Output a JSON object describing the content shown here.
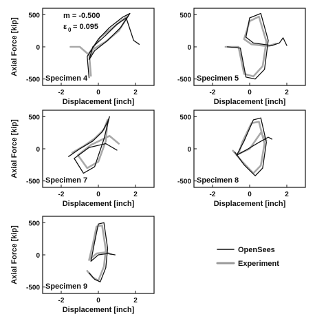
{
  "figure": {
    "legend": {
      "position": "bottom-right",
      "entries": [
        {
          "label": "OpenSees",
          "color": "#111111"
        },
        {
          "label": "Experiment",
          "color": "#9a9a9a"
        }
      ]
    },
    "annotation": {
      "m": "m = -0.500",
      "eps_symbol": "ε",
      "eps_sub": "0",
      "eps_value": "= 0.095"
    }
  },
  "chart_data": [
    {
      "type": "line",
      "label": "Specimen 4",
      "xlabel": "Displacement [inch]",
      "ylabel": "Axial Force [kip]",
      "xlim": [
        -3,
        3
      ],
      "ylim": [
        -600,
        600
      ],
      "xticks": [
        -2,
        0,
        2
      ],
      "yticks": [
        -500,
        0,
        500
      ],
      "series": [
        {
          "name": "OpenSees",
          "color": "#111111",
          "x": [
            -0.5,
            -0.6,
            0.0,
            0.6,
            1.3,
            1.7,
            1.2,
            0.5,
            -0.2,
            -0.5,
            -0.3,
            0.4,
            1.0,
            1.5,
            1.9,
            2.2
          ],
          "y": [
            -480,
            -150,
            120,
            300,
            460,
            520,
            300,
            100,
            -60,
            -200,
            0,
            180,
            350,
            450,
            100,
            40
          ]
        },
        {
          "name": "Experiment",
          "color": "#9a9a9a",
          "x": [
            -0.4,
            -0.5,
            0.1,
            0.7,
            1.2,
            1.6,
            1.1,
            0.4,
            -0.3,
            -0.4,
            -1.0,
            -1.5
          ],
          "y": [
            -450,
            -100,
            150,
            280,
            400,
            480,
            250,
            80,
            -40,
            -150,
            0,
            0
          ]
        }
      ]
    },
    {
      "type": "line",
      "label": "Specimen 5",
      "xlabel": "Displacement [inch]",
      "ylabel": "Axial Force [kip]",
      "xlim": [
        -3,
        3
      ],
      "ylim": [
        -600,
        600
      ],
      "xticks": [
        -2,
        0,
        2
      ],
      "yticks": [
        -500,
        0,
        500
      ],
      "series": [
        {
          "name": "OpenSees",
          "color": "#111111",
          "x": [
            -1.2,
            -0.5,
            -0.2,
            0.3,
            0.8,
            1.0,
            0.6,
            0.0,
            -0.2,
            0.2,
            1.2,
            1.6,
            1.8,
            2.0
          ],
          "y": [
            0,
            -20,
            -470,
            -500,
            -350,
            100,
            520,
            450,
            150,
            60,
            20,
            60,
            140,
            20
          ]
        },
        {
          "name": "Experiment",
          "color": "#9a9a9a",
          "x": [
            -1.3,
            -0.6,
            -0.3,
            0.2,
            0.7,
            0.9,
            0.5,
            0.0,
            -0.3,
            0.1,
            1.0,
            1.4
          ],
          "y": [
            0,
            0,
            -420,
            -460,
            -300,
            80,
            470,
            400,
            120,
            40,
            10,
            50
          ]
        }
      ]
    },
    {
      "type": "line",
      "label": "Specimen 7",
      "xlabel": "Displacement [inch]",
      "ylabel": "Axial Force [kip]",
      "xlim": [
        -3,
        3
      ],
      "ylim": [
        -600,
        600
      ],
      "xticks": [
        -2,
        0,
        2
      ],
      "yticks": [
        -500,
        0,
        500
      ],
      "series": [
        {
          "name": "OpenSees",
          "color": "#111111",
          "x": [
            -1.6,
            -1.0,
            -0.3,
            0.2,
            0.5,
            0.6,
            0.3,
            -0.2,
            -0.8,
            -1.3,
            -0.5,
            0.4,
            1.0
          ],
          "y": [
            -120,
            0,
            120,
            260,
            420,
            500,
            150,
            -280,
            -380,
            -150,
            20,
            80,
            -20
          ]
        },
        {
          "name": "Experiment",
          "color": "#9a9a9a",
          "x": [
            -1.4,
            -0.8,
            -0.2,
            0.3,
            0.5,
            0.4,
            0.0,
            -0.6,
            -1.1,
            -0.4,
            0.6,
            1.1
          ],
          "y": [
            -60,
            40,
            160,
            300,
            450,
            120,
            -200,
            -300,
            -100,
            60,
            200,
            80
          ]
        }
      ]
    },
    {
      "type": "line",
      "label": "Specimen 8",
      "xlabel": "Displacement [inch]",
      "ylabel": "Axial Force [kip]",
      "xlim": [
        -3,
        3
      ],
      "ylim": [
        -600,
        600
      ],
      "xticks": [
        -2,
        0,
        2
      ],
      "yticks": [
        -500,
        0,
        500
      ],
      "series": [
        {
          "name": "OpenSees",
          "color": "#111111",
          "x": [
            -0.8,
            -0.3,
            0.3,
            0.7,
            0.9,
            0.6,
            0.2,
            -0.3,
            -0.7,
            -0.2,
            0.5,
            1.0,
            1.2
          ],
          "y": [
            -50,
            -250,
            -420,
            -300,
            100,
            480,
            450,
            120,
            -100,
            -20,
            100,
            180,
            150
          ]
        },
        {
          "name": "Experiment",
          "color": "#9a9a9a",
          "x": [
            -0.9,
            -0.4,
            0.2,
            0.6,
            0.8,
            0.5,
            0.1,
            -0.4,
            -0.6,
            0.0,
            0.6,
            0.9
          ],
          "y": [
            -30,
            -200,
            -380,
            -260,
            80,
            420,
            400,
            100,
            -80,
            0,
            250,
            130
          ]
        }
      ]
    },
    {
      "type": "line",
      "label": "Specimen 9",
      "xlabel": "Displacement [inch]",
      "ylabel": "Axial Force [kip]",
      "xlim": [
        -3,
        3
      ],
      "ylim": [
        -600,
        600
      ],
      "xticks": [
        -2,
        0,
        2
      ],
      "yticks": [
        -500,
        0,
        500
      ],
      "series": [
        {
          "name": "OpenSees",
          "color": "#111111",
          "x": [
            -0.5,
            -0.2,
            0.1,
            0.4,
            0.5,
            0.3,
            0.0,
            -0.2,
            -0.4,
            0.0,
            0.5,
            0.9
          ],
          "y": [
            -280,
            -380,
            -420,
            -200,
            100,
            500,
            480,
            200,
            -100,
            0,
            20,
            0
          ]
        },
        {
          "name": "Experiment",
          "color": "#9a9a9a",
          "x": [
            -0.6,
            -0.3,
            0.0,
            0.3,
            0.4,
            0.2,
            -0.1,
            -0.3,
            -0.5,
            -0.1,
            0.4,
            0.7
          ],
          "y": [
            -250,
            -350,
            -400,
            -180,
            80,
            460,
            440,
            160,
            -80,
            20,
            40,
            10
          ]
        }
      ]
    }
  ]
}
